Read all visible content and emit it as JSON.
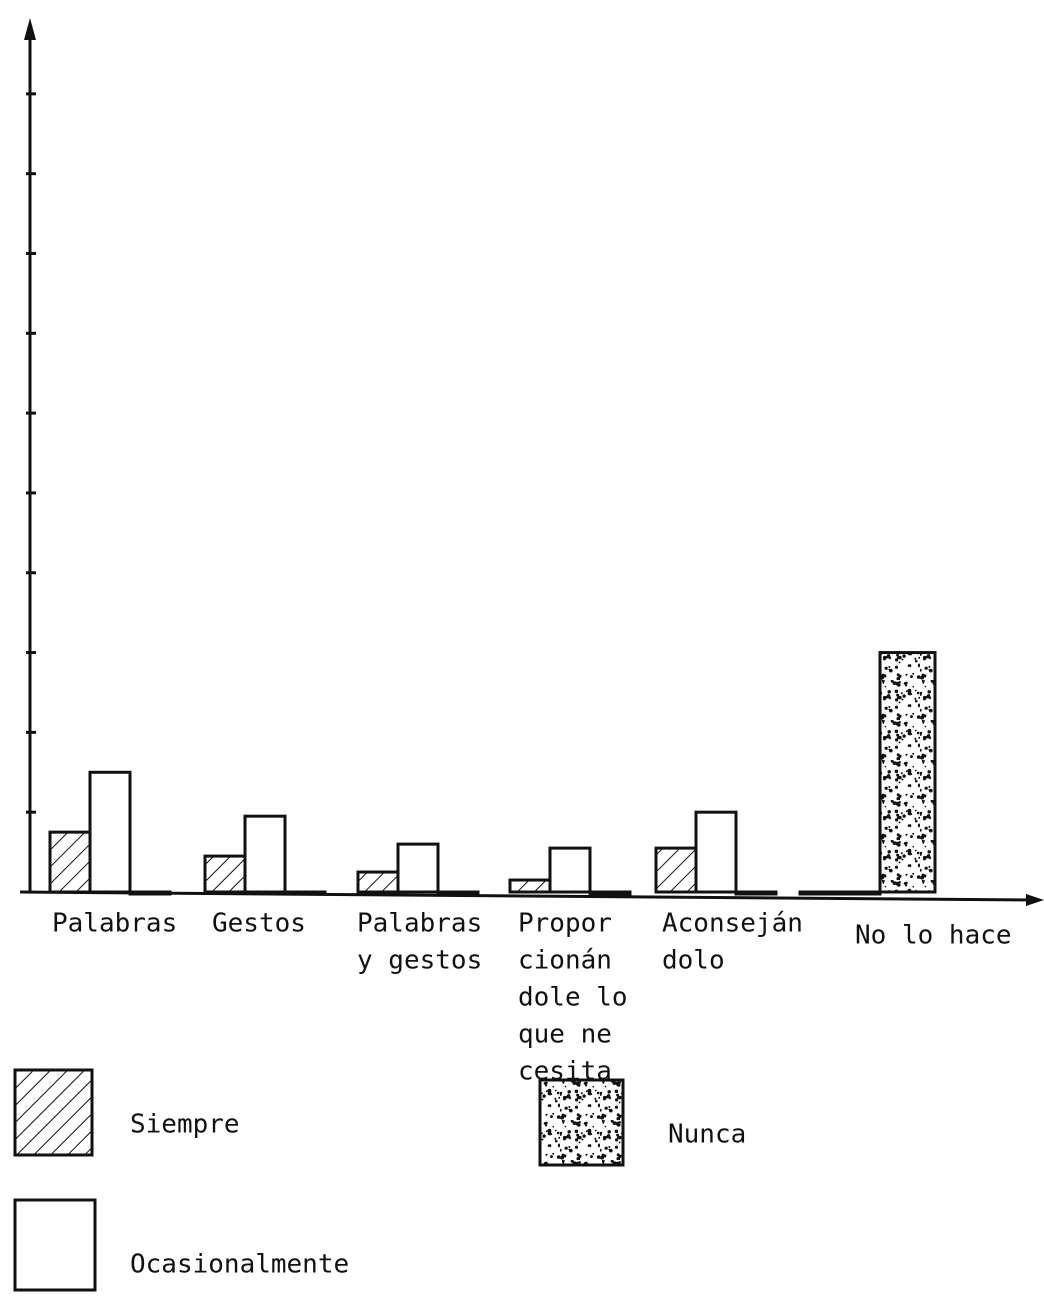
{
  "chart_data": {
    "type": "bar",
    "categories": [
      [
        "Palabras"
      ],
      [
        "Gestos"
      ],
      [
        "Palabras",
        "y gestos"
      ],
      [
        "Propor",
        "cionán",
        "dole lo",
        "que ne",
        "cesita"
      ],
      [
        "Aconseján",
        "dolo"
      ],
      [
        "No lo hace"
      ]
    ],
    "series": [
      {
        "name": "Siempre",
        "color": "#ffffff",
        "pattern": "hatch",
        "values": [
          0.75,
          0.45,
          0.25,
          0.15,
          0.55,
          0
        ]
      },
      {
        "name": "Ocasionalmente",
        "color": "#ffffff",
        "pattern": "none",
        "values": [
          1.5,
          0.95,
          0.6,
          0.55,
          1.0,
          0
        ]
      },
      {
        "name": "Nunca",
        "color": "#ffffff",
        "pattern": "stipple",
        "values": [
          0,
          0,
          0,
          0,
          0,
          3.0
        ]
      }
    ],
    "ylim": [
      0,
      10.8
    ],
    "yticks": [
      1,
      2,
      3,
      4,
      5,
      6,
      7,
      8,
      9,
      10
    ]
  }
}
